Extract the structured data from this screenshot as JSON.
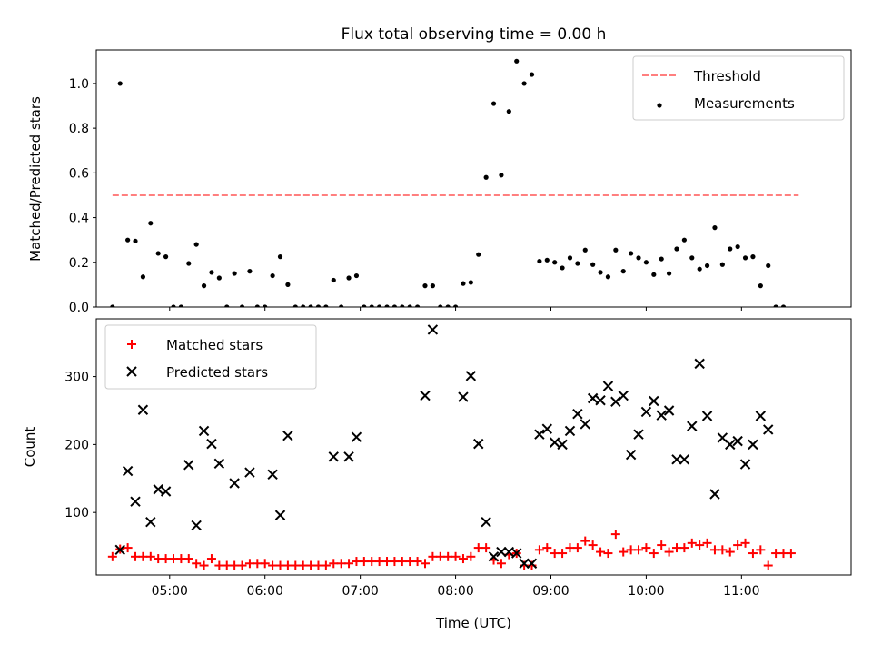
{
  "title": "Flux total observing time = 0.00 h",
  "chart_data": [
    {
      "type": "scatter",
      "ylabel": "Matched/Predicted stars",
      "xlim": [
        4.23,
        12.15
      ],
      "ylim": [
        0,
        1.15
      ],
      "yticks": [
        0.0,
        0.2,
        0.4,
        0.6,
        0.8,
        1.0
      ],
      "ytick_labels": [
        "0.0",
        "0.2",
        "0.4",
        "0.6",
        "0.8",
        "1.0"
      ],
      "legend_placement": "top-right",
      "threshold": {
        "name": "Threshold",
        "value": 0.5,
        "x_range": [
          4.4,
          11.6
        ],
        "color": "#ff7f7f",
        "style": "dashed"
      },
      "series": [
        {
          "name": "Measurements",
          "color": "#000000",
          "marker": "dot",
          "points": [
            [
              4.4,
              0.0
            ],
            [
              4.48,
              1.0
            ],
            [
              4.56,
              0.3
            ],
            [
              4.64,
              0.295
            ],
            [
              4.72,
              0.135
            ],
            [
              4.8,
              0.375
            ],
            [
              4.88,
              0.24
            ],
            [
              4.96,
              0.225
            ],
            [
              5.04,
              0.0
            ],
            [
              5.12,
              0.0
            ],
            [
              5.2,
              0.195
            ],
            [
              5.28,
              0.28
            ],
            [
              5.36,
              0.095
            ],
            [
              5.44,
              0.155
            ],
            [
              5.52,
              0.13
            ],
            [
              5.6,
              0.0
            ],
            [
              5.68,
              0.15
            ],
            [
              5.76,
              0.0
            ],
            [
              5.84,
              0.16
            ],
            [
              5.92,
              0.0
            ],
            [
              6.0,
              0.0
            ],
            [
              6.08,
              0.14
            ],
            [
              6.16,
              0.225
            ],
            [
              6.24,
              0.1
            ],
            [
              6.32,
              0.0
            ],
            [
              6.4,
              0.0
            ],
            [
              6.48,
              0.0
            ],
            [
              6.56,
              0.0
            ],
            [
              6.64,
              0.0
            ],
            [
              6.72,
              0.12
            ],
            [
              6.8,
              0.0
            ],
            [
              6.88,
              0.13
            ],
            [
              6.96,
              0.14
            ],
            [
              7.04,
              0.0
            ],
            [
              7.12,
              0.0
            ],
            [
              7.2,
              0.0
            ],
            [
              7.28,
              0.0
            ],
            [
              7.36,
              0.0
            ],
            [
              7.44,
              0.0
            ],
            [
              7.52,
              0.0
            ],
            [
              7.6,
              0.0
            ],
            [
              7.68,
              0.095
            ],
            [
              7.76,
              0.095
            ],
            [
              7.84,
              0.0
            ],
            [
              7.92,
              0.0
            ],
            [
              8.0,
              0.0
            ],
            [
              8.08,
              0.105
            ],
            [
              8.16,
              0.11
            ],
            [
              8.24,
              0.235
            ],
            [
              8.32,
              0.58
            ],
            [
              8.4,
              0.91
            ],
            [
              8.48,
              0.59
            ],
            [
              8.56,
              0.875
            ],
            [
              8.64,
              1.1
            ],
            [
              8.72,
              1.0
            ],
            [
              8.8,
              1.04
            ],
            [
              8.88,
              0.205
            ],
            [
              8.96,
              0.21
            ],
            [
              9.04,
              0.2
            ],
            [
              9.12,
              0.175
            ],
            [
              9.2,
              0.22
            ],
            [
              9.28,
              0.195
            ],
            [
              9.36,
              0.255
            ],
            [
              9.44,
              0.19
            ],
            [
              9.52,
              0.155
            ],
            [
              9.6,
              0.135
            ],
            [
              9.68,
              0.255
            ],
            [
              9.76,
              0.16
            ],
            [
              9.84,
              0.24
            ],
            [
              9.92,
              0.22
            ],
            [
              10.0,
              0.2
            ],
            [
              10.08,
              0.145
            ],
            [
              10.16,
              0.215
            ],
            [
              10.24,
              0.15
            ],
            [
              10.32,
              0.26
            ],
            [
              10.4,
              0.3
            ],
            [
              10.48,
              0.22
            ],
            [
              10.56,
              0.17
            ],
            [
              10.64,
              0.185
            ],
            [
              10.72,
              0.355
            ],
            [
              10.8,
              0.19
            ],
            [
              10.88,
              0.26
            ],
            [
              10.96,
              0.27
            ],
            [
              11.04,
              0.22
            ],
            [
              11.12,
              0.225
            ],
            [
              11.2,
              0.095
            ],
            [
              11.28,
              0.185
            ],
            [
              11.36,
              0.0
            ],
            [
              11.44,
              0.0
            ]
          ]
        }
      ]
    },
    {
      "type": "scatter",
      "xlabel": "Time (UTC)",
      "ylabel": "Count",
      "xlim": [
        4.23,
        12.15
      ],
      "ylim": [
        8,
        385
      ],
      "xticks": [
        5,
        6,
        7,
        8,
        9,
        10,
        11
      ],
      "xtick_labels": [
        "05:00",
        "06:00",
        "07:00",
        "08:00",
        "09:00",
        "10:00",
        "11:00"
      ],
      "yticks": [
        100,
        200,
        300
      ],
      "ytick_labels": [
        "100",
        "200",
        "300"
      ],
      "legend_placement": "top-left",
      "series": [
        {
          "name": "Matched stars",
          "color": "#ff0000",
          "marker": "plus",
          "points": [
            [
              4.4,
              35
            ],
            [
              4.48,
              46
            ],
            [
              4.56,
              48
            ],
            [
              4.64,
              35
            ],
            [
              4.72,
              35
            ],
            [
              4.8,
              35
            ],
            [
              4.88,
              32
            ],
            [
              4.96,
              32
            ],
            [
              5.04,
              32
            ],
            [
              5.12,
              32
            ],
            [
              5.2,
              32
            ],
            [
              5.28,
              25
            ],
            [
              5.36,
              22
            ],
            [
              5.44,
              32
            ],
            [
              5.52,
              22
            ],
            [
              5.6,
              22
            ],
            [
              5.68,
              22
            ],
            [
              5.76,
              22
            ],
            [
              5.84,
              25
            ],
            [
              5.92,
              25
            ],
            [
              6.0,
              25
            ],
            [
              6.08,
              22
            ],
            [
              6.16,
              22
            ],
            [
              6.24,
              22
            ],
            [
              6.32,
              22
            ],
            [
              6.4,
              22
            ],
            [
              6.48,
              22
            ],
            [
              6.56,
              22
            ],
            [
              6.64,
              22
            ],
            [
              6.72,
              25
            ],
            [
              6.8,
              25
            ],
            [
              6.88,
              25
            ],
            [
              6.96,
              28
            ],
            [
              7.04,
              28
            ],
            [
              7.12,
              28
            ],
            [
              7.2,
              28
            ],
            [
              7.28,
              28
            ],
            [
              7.36,
              28
            ],
            [
              7.44,
              28
            ],
            [
              7.52,
              28
            ],
            [
              7.6,
              28
            ],
            [
              7.68,
              25
            ],
            [
              7.76,
              35
            ],
            [
              7.84,
              35
            ],
            [
              7.92,
              35
            ],
            [
              8.0,
              35
            ],
            [
              8.08,
              32
            ],
            [
              8.16,
              35
            ],
            [
              8.24,
              48
            ],
            [
              8.32,
              48
            ],
            [
              8.4,
              30
            ],
            [
              8.48,
              25
            ],
            [
              8.56,
              38
            ],
            [
              8.64,
              40
            ],
            [
              8.72,
              22
            ],
            [
              8.8,
              22
            ],
            [
              8.88,
              45
            ],
            [
              8.96,
              48
            ],
            [
              9.04,
              40
            ],
            [
              9.12,
              40
            ],
            [
              9.2,
              48
            ],
            [
              9.28,
              48
            ],
            [
              9.36,
              58
            ],
            [
              9.44,
              52
            ],
            [
              9.52,
              42
            ],
            [
              9.6,
              40
            ],
            [
              9.68,
              68
            ],
            [
              9.76,
              42
            ],
            [
              9.84,
              45
            ],
            [
              9.92,
              45
            ],
            [
              10.0,
              48
            ],
            [
              10.08,
              40
            ],
            [
              10.16,
              52
            ],
            [
              10.24,
              42
            ],
            [
              10.32,
              48
            ],
            [
              10.4,
              48
            ],
            [
              10.48,
              55
            ],
            [
              10.56,
              52
            ],
            [
              10.64,
              55
            ],
            [
              10.72,
              45
            ],
            [
              10.8,
              45
            ],
            [
              10.88,
              42
            ],
            [
              10.96,
              52
            ],
            [
              11.04,
              55
            ],
            [
              11.12,
              40
            ],
            [
              11.2,
              45
            ],
            [
              11.28,
              22
            ],
            [
              11.36,
              40
            ],
            [
              11.44,
              40
            ],
            [
              11.52,
              40
            ]
          ]
        },
        {
          "name": "Predicted stars",
          "color": "#000000",
          "marker": "x",
          "points": [
            [
              4.48,
              45
            ],
            [
              4.56,
              161
            ],
            [
              4.64,
              116
            ],
            [
              4.72,
              251
            ],
            [
              4.8,
              86
            ],
            [
              4.88,
              134
            ],
            [
              4.96,
              131
            ],
            [
              5.2,
              170
            ],
            [
              5.28,
              81
            ],
            [
              5.36,
              220
            ],
            [
              5.44,
              201
            ],
            [
              5.52,
              172
            ],
            [
              5.68,
              143
            ],
            [
              5.84,
              159
            ],
            [
              6.08,
              156
            ],
            [
              6.16,
              96
            ],
            [
              6.24,
              213
            ],
            [
              6.72,
              182
            ],
            [
              6.88,
              182
            ],
            [
              6.96,
              211
            ],
            [
              7.68,
              272
            ],
            [
              7.76,
              369
            ],
            [
              8.08,
              270
            ],
            [
              8.16,
              301
            ],
            [
              8.24,
              201
            ],
            [
              8.32,
              86
            ],
            [
              8.4,
              35
            ],
            [
              8.48,
              42
            ],
            [
              8.56,
              42
            ],
            [
              8.64,
              40
            ],
            [
              8.72,
              25
            ],
            [
              8.8,
              25
            ],
            [
              8.88,
              215
            ],
            [
              8.96,
              223
            ],
            [
              9.04,
              203
            ],
            [
              9.12,
              200
            ],
            [
              9.2,
              220
            ],
            [
              9.28,
              245
            ],
            [
              9.36,
              230
            ],
            [
              9.44,
              268
            ],
            [
              9.52,
              265
            ],
            [
              9.6,
              286
            ],
            [
              9.68,
              263
            ],
            [
              9.76,
              272
            ],
            [
              9.84,
              185
            ],
            [
              9.92,
              215
            ],
            [
              10.0,
              248
            ],
            [
              10.08,
              264
            ],
            [
              10.16,
              243
            ],
            [
              10.24,
              250
            ],
            [
              10.32,
              178
            ],
            [
              10.4,
              178
            ],
            [
              10.48,
              227
            ],
            [
              10.56,
              319
            ],
            [
              10.64,
              242
            ],
            [
              10.72,
              127
            ],
            [
              10.8,
              210
            ],
            [
              10.88,
              200
            ],
            [
              10.96,
              205
            ],
            [
              11.04,
              171
            ],
            [
              11.12,
              200
            ],
            [
              11.2,
              242
            ],
            [
              11.28,
              222
            ]
          ]
        }
      ]
    }
  ]
}
